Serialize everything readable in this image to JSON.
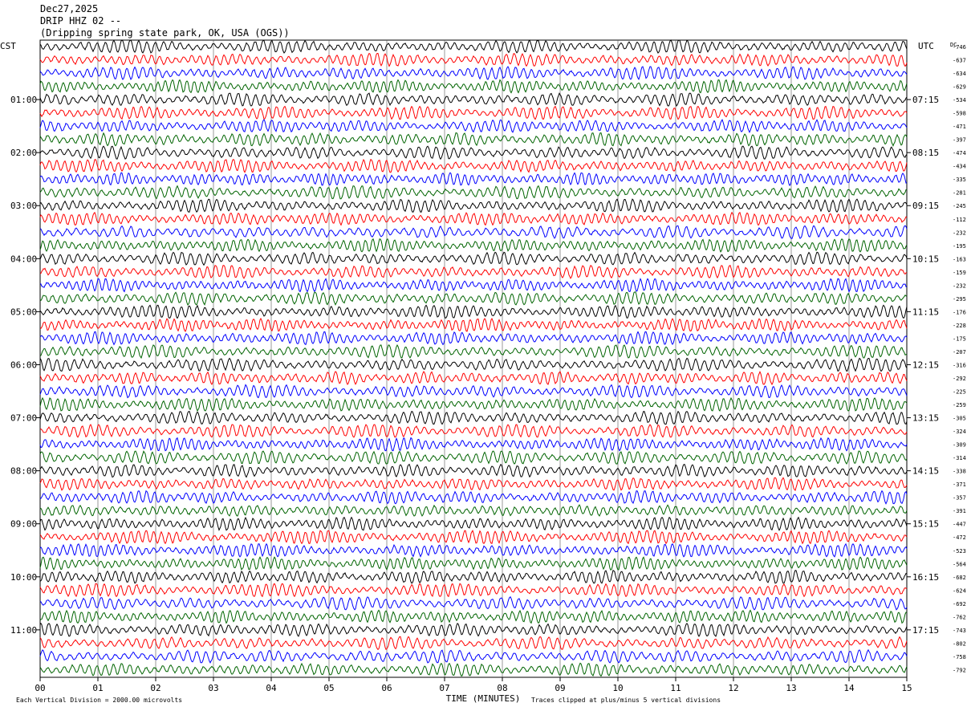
{
  "header": {
    "date": "Dec27,2025",
    "station": "DRIP HHZ 02 --",
    "location": "(Dripping spring state park, OK, USA (OGS))"
  },
  "left_label": "CST",
  "right_label": "UTC",
  "dc_label": "DC",
  "chart_data": {
    "type": "line",
    "title": "DRIP HHZ 02 --",
    "xlabel": "TIME (MINUTES)",
    "x_ticks": [
      "00",
      "01",
      "02",
      "03",
      "04",
      "05",
      "06",
      "07",
      "08",
      "09",
      "10",
      "11",
      "12",
      "13",
      "14",
      "15"
    ],
    "xlim": [
      0,
      15
    ],
    "trace_count": 48,
    "trace_colors": [
      "#000000",
      "#ff0000",
      "#0000ff",
      "#006400"
    ],
    "left_hour_labels": [
      {
        "trace": 4,
        "label": "01:00"
      },
      {
        "trace": 8,
        "label": "02:00"
      },
      {
        "trace": 12,
        "label": "03:00"
      },
      {
        "trace": 16,
        "label": "04:00"
      },
      {
        "trace": 20,
        "label": "05:00"
      },
      {
        "trace": 24,
        "label": "06:00"
      },
      {
        "trace": 28,
        "label": "07:00"
      },
      {
        "trace": 32,
        "label": "08:00"
      },
      {
        "trace": 36,
        "label": "09:00"
      },
      {
        "trace": 40,
        "label": "10:00"
      },
      {
        "trace": 44,
        "label": "11:00"
      }
    ],
    "right_hour_labels": [
      {
        "trace": 4,
        "label": "07:15"
      },
      {
        "trace": 8,
        "label": "08:15"
      },
      {
        "trace": 12,
        "label": "09:15"
      },
      {
        "trace": 16,
        "label": "10:15"
      },
      {
        "trace": 20,
        "label": "11:15"
      },
      {
        "trace": 24,
        "label": "12:15"
      },
      {
        "trace": 28,
        "label": "13:15"
      },
      {
        "trace": 32,
        "label": "14:15"
      },
      {
        "trace": 36,
        "label": "15:15"
      },
      {
        "trace": 40,
        "label": "16:15"
      },
      {
        "trace": 44,
        "label": "17:15"
      }
    ],
    "dc_offsets": [
      "-746",
      "-637",
      "-634",
      "-629",
      "-534",
      "-598",
      "-471",
      "-397",
      "-474",
      "-434",
      "-335",
      "-281",
      "-245",
      "-112",
      "-232",
      "-195",
      "-163",
      "-159",
      "-232",
      "-295",
      "-176",
      "-228",
      "-175",
      "-207",
      "-316",
      "-292",
      "-225",
      "-259",
      "-305",
      "-324",
      "-309",
      "-314",
      "-338",
      "-371",
      "-357",
      "-391",
      "-447",
      "-472",
      "-523",
      "-564",
      "-682",
      "-624",
      "-692",
      "-762",
      "-743",
      "-802",
      "-758",
      "-792"
    ],
    "footer_left": "Each Vertical Division = 2000.00 microvolts",
    "footer_right": "Traces clipped at plus/minus 5 vertical divisions"
  }
}
